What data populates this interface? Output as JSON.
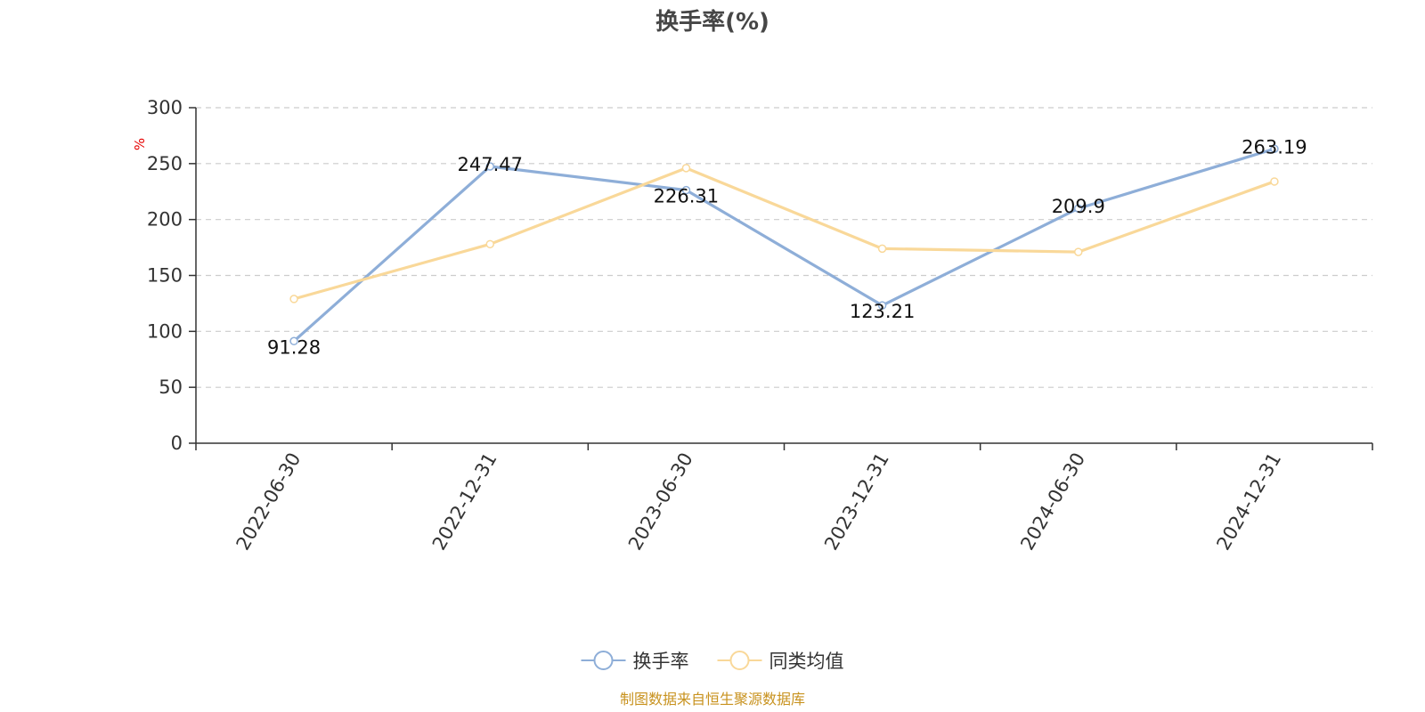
{
  "chart_data": {
    "type": "line",
    "title": "换手率(%)",
    "ylabel": "%",
    "xlabel": "",
    "categories": [
      "2022-06-30",
      "2022-12-31",
      "2023-06-30",
      "2023-12-31",
      "2024-06-30",
      "2024-12-31"
    ],
    "ylim": [
      0,
      300
    ],
    "yticks": [
      0,
      50,
      100,
      150,
      200,
      250,
      300
    ],
    "grid": true,
    "legend_position": "bottom-center",
    "series": [
      {
        "name": "换手率",
        "color": "#8eaed8",
        "values": [
          91.28,
          247.47,
          226.31,
          123.21,
          209.9,
          263.19
        ],
        "labels": [
          "91.28",
          "247.47",
          "226.31",
          "123.21",
          "209.9",
          "263.19"
        ],
        "show_labels": true
      },
      {
        "name": "同类均值",
        "color": "#f9d899",
        "values": [
          129,
          178,
          246,
          174,
          171,
          234
        ],
        "show_labels": false
      }
    ],
    "source_note": "制图数据来自恒生聚源数据库"
  }
}
